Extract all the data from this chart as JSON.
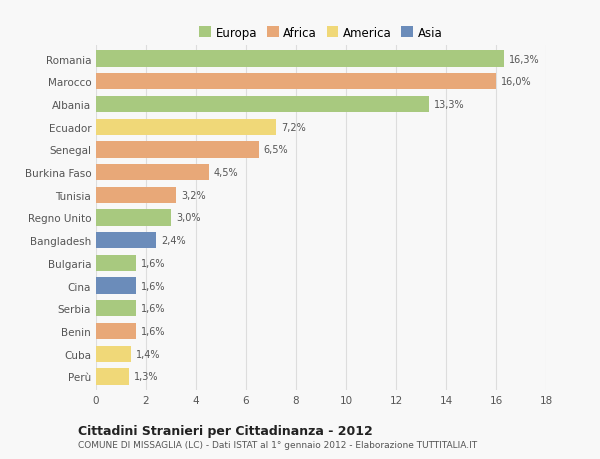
{
  "categories": [
    "Romania",
    "Marocco",
    "Albania",
    "Ecuador",
    "Senegal",
    "Burkina Faso",
    "Tunisia",
    "Regno Unito",
    "Bangladesh",
    "Bulgaria",
    "Cina",
    "Serbia",
    "Benin",
    "Cuba",
    "Perù"
  ],
  "values": [
    16.3,
    16.0,
    13.3,
    7.2,
    6.5,
    4.5,
    3.2,
    3.0,
    2.4,
    1.6,
    1.6,
    1.6,
    1.6,
    1.4,
    1.3
  ],
  "labels": [
    "16,3%",
    "16,0%",
    "13,3%",
    "7,2%",
    "6,5%",
    "4,5%",
    "3,2%",
    "3,0%",
    "2,4%",
    "1,6%",
    "1,6%",
    "1,6%",
    "1,6%",
    "1,4%",
    "1,3%"
  ],
  "colors": [
    "#a8c97f",
    "#e8a878",
    "#a8c97f",
    "#f0d878",
    "#e8a878",
    "#e8a878",
    "#e8a878",
    "#a8c97f",
    "#6b8cba",
    "#a8c97f",
    "#6b8cba",
    "#a8c97f",
    "#e8a878",
    "#f0d878",
    "#f0d878"
  ],
  "legend_labels": [
    "Europa",
    "Africa",
    "America",
    "Asia"
  ],
  "legend_colors": [
    "#a8c97f",
    "#e8a878",
    "#f0d878",
    "#6b8cba"
  ],
  "title": "Cittadini Stranieri per Cittadinanza - 2012",
  "subtitle": "COMUNE DI MISSAGLIA (LC) - Dati ISTAT al 1° gennaio 2012 - Elaborazione TUTTITALIA.IT",
  "xlim": [
    0,
    18
  ],
  "xticks": [
    0,
    2,
    4,
    6,
    8,
    10,
    12,
    14,
    16,
    18
  ],
  "bg_color": "#f8f8f8",
  "grid_color": "#dddddd"
}
